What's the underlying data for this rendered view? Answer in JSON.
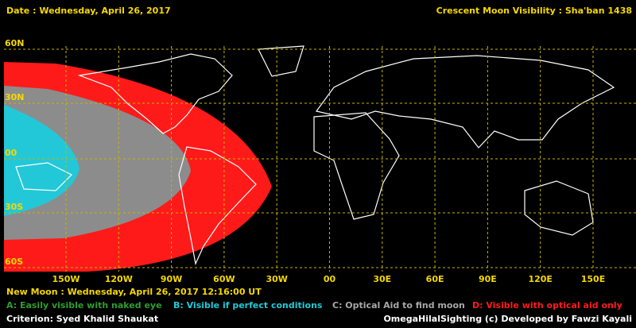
{
  "header": {
    "date": "Date : Wednesday, April 26, 2017",
    "title": "Crescent Moon Visibility : Sha'ban  1438"
  },
  "grid": {
    "lat_labels": [
      "60N",
      "30N",
      "00",
      "30S",
      "60S"
    ],
    "lon_labels": [
      "150W",
      "120W",
      "90W",
      "60W",
      "30W",
      "00",
      "30E",
      "60E",
      "90E",
      "120E",
      "150E"
    ]
  },
  "footer": {
    "new_moon": "New Moon : Wednesday, April 26, 2017  12:16:00  UT",
    "criterion": "Criterion: Syed Khalid Shaukat",
    "credit": "OmegaHilalSighting  (c)  Developed by Fawzi Kayali"
  },
  "legend": {
    "items": [
      {
        "label": "A: Easily visible with naked eye",
        "color": "#2e9e2e"
      },
      {
        "label": "B: Visible if perfect conditions",
        "color": "#22c8d8"
      },
      {
        "label": "C: Optical Aid to find moon",
        "color": "#a8a8a8"
      },
      {
        "label": "D: Visible with optical aid only",
        "color": "#ff1a1a"
      }
    ]
  }
}
